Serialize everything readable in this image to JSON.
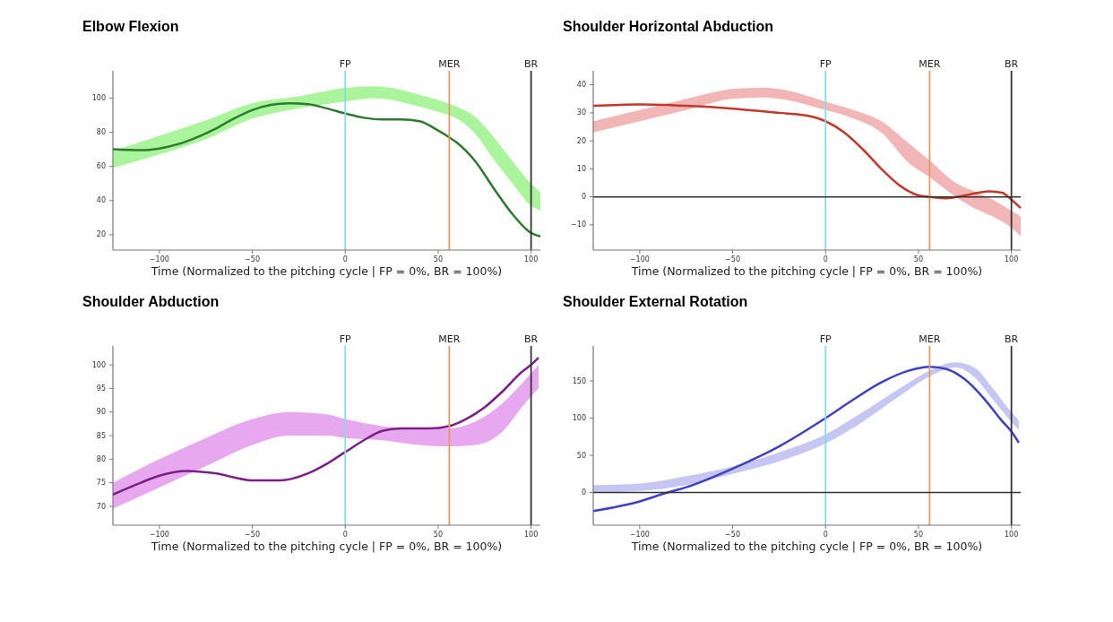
{
  "chart_data": [
    {
      "type": "line",
      "title": "Elbow Flexion",
      "xlabel": "Time (Normalized to the pitching cycle | FP = 0%, BR = 100%)",
      "xlim": [
        -125,
        105
      ],
      "xticks": [
        -100,
        -50,
        0,
        50,
        100
      ],
      "ylim": [
        11,
        116
      ],
      "yticks": [
        20,
        40,
        60,
        80,
        100
      ],
      "grid": false,
      "ref_lines": [
        {
          "axis": "x",
          "value": 0,
          "label": "FP",
          "color": "#7fdfea"
        },
        {
          "axis": "x",
          "value": 56,
          "label": "MER",
          "color": "#e89a5a"
        },
        {
          "axis": "x",
          "value": 100,
          "label": "BR",
          "color": "#333333"
        }
      ],
      "series": [
        {
          "type": "area",
          "color": "#aaf59c",
          "x": [
            -125,
            -100,
            -75,
            -50,
            -25,
            0,
            15,
            25,
            40,
            50,
            60,
            70,
            80,
            90,
            100,
            105
          ],
          "values": [
            null,
            null,
            null,
            null,
            null,
            null,
            null,
            null,
            null,
            null,
            null,
            null,
            null,
            null,
            null,
            null
          ],
          "lower": [
            59,
            67,
            76,
            88,
            94,
            98,
            100,
            99,
            95,
            92,
            88,
            79,
            64,
            50,
            37,
            34
          ],
          "upper": [
            69,
            78,
            87,
            97,
            101,
            106,
            107,
            106,
            102,
            99,
            95,
            89,
            77,
            63,
            50,
            45
          ]
        },
        {
          "type": "line",
          "color": "#2e7a2e",
          "x": [
            -125,
            -110,
            -100,
            -90,
            -80,
            -70,
            -60,
            -50,
            -40,
            -30,
            -20,
            -10,
            0,
            10,
            20,
            30,
            40,
            50,
            56,
            60,
            70,
            80,
            90,
            100,
            105
          ],
          "values": [
            70,
            69.5,
            70.5,
            73,
            77,
            82,
            88,
            93,
            96,
            97,
            96.5,
            94,
            91,
            88.5,
            87.5,
            87.5,
            86.5,
            81,
            77,
            74,
            63,
            47,
            32,
            21,
            19
          ]
        }
      ]
    },
    {
      "type": "line",
      "title": "Shoulder Horizontal Abduction",
      "xlabel": "Time (Normalized to the pitching cycle | FP = 0%, BR = 100%)",
      "xlim": [
        -125,
        105
      ],
      "xticks": [
        -100,
        -50,
        0,
        50,
        100
      ],
      "ylim": [
        -19,
        45
      ],
      "yticks": [
        -10,
        0,
        10,
        20,
        30,
        40
      ],
      "grid": false,
      "ref_lines": [
        {
          "axis": "x",
          "value": 0,
          "label": "FP",
          "color": "#7fdfea"
        },
        {
          "axis": "x",
          "value": 56,
          "label": "MER",
          "color": "#e89a5a"
        },
        {
          "axis": "x",
          "value": 100,
          "label": "BR",
          "color": "#333333"
        },
        {
          "axis": "y",
          "value": 0,
          "color": "#333333"
        }
      ],
      "series": [
        {
          "type": "area",
          "color": "#f2b6b6",
          "x": [
            -125,
            -100,
            -75,
            -50,
            -35,
            -25,
            0,
            15,
            30,
            45,
            56,
            70,
            80,
            90,
            100,
            105
          ],
          "values": [
            null,
            null,
            null,
            null,
            null,
            null,
            null,
            null,
            null,
            null,
            null,
            null,
            null,
            null,
            null,
            null
          ],
          "lower": [
            23,
            27,
            31,
            35,
            35.5,
            35,
            31,
            28,
            23,
            12,
            7,
            0,
            -4,
            -7,
            -11,
            -14
          ],
          "upper": [
            27,
            31,
            35,
            38.5,
            39,
            38.5,
            34,
            31,
            27,
            19,
            13,
            5,
            2,
            -1,
            -5,
            -7
          ]
        },
        {
          "type": "line",
          "color": "#c0392b",
          "x": [
            -125,
            -100,
            -75,
            -50,
            -25,
            -10,
            0,
            10,
            20,
            30,
            40,
            50,
            56,
            65,
            75,
            88,
            95,
            100,
            105
          ],
          "values": [
            32.5,
            33,
            32.5,
            31.5,
            30,
            29,
            27,
            23,
            17,
            10,
            4,
            0.5,
            0,
            -0.5,
            0.5,
            2,
            1.5,
            -1,
            -4
          ]
        }
      ]
    },
    {
      "type": "line",
      "title": "Shoulder Abduction",
      "xlabel": "Time (Normalized to the pitching cycle | FP = 0%, BR = 100%)",
      "xlim": [
        -125,
        105
      ],
      "xticks": [
        -100,
        -50,
        0,
        50,
        100
      ],
      "ylim": [
        66,
        104
      ],
      "yticks": [
        70,
        75,
        80,
        85,
        90,
        95,
        100
      ],
      "grid": false,
      "ref_lines": [
        {
          "axis": "x",
          "value": 0,
          "label": "FP",
          "color": "#7fdfea"
        },
        {
          "axis": "x",
          "value": 56,
          "label": "MER",
          "color": "#e89a5a"
        },
        {
          "axis": "x",
          "value": 100,
          "label": "BR",
          "color": "#333333"
        }
      ],
      "series": [
        {
          "type": "area",
          "color": "#e8a8f0",
          "x": [
            -125,
            -100,
            -75,
            -50,
            -30,
            -10,
            0,
            20,
            40,
            56,
            70,
            85,
            95,
            104
          ],
          "values": [
            null,
            null,
            null,
            null,
            null,
            null,
            null,
            null,
            null,
            null,
            null,
            null,
            null,
            null
          ],
          "lower": [
            69.5,
            74,
            78.5,
            83,
            85,
            85,
            84.5,
            84,
            83,
            82.7,
            83,
            86,
            91,
            95
          ],
          "upper": [
            75,
            80,
            84.5,
            88.5,
            90,
            89.5,
            88.5,
            87,
            86.5,
            86.5,
            88,
            92,
            96,
            100
          ]
        },
        {
          "type": "line",
          "color": "#7a1f86",
          "x": [
            -125,
            -110,
            -100,
            -85,
            -70,
            -50,
            -35,
            -20,
            -10,
            0,
            10,
            20,
            30,
            45,
            56,
            65,
            75,
            85,
            95,
            100,
            104
          ],
          "values": [
            72.5,
            75,
            76.5,
            77.5,
            77,
            75.5,
            75.5,
            77,
            79,
            81.5,
            84,
            86,
            86.5,
            86.5,
            87,
            88.5,
            91,
            94.5,
            98.5,
            100,
            101.5
          ]
        }
      ]
    },
    {
      "type": "line",
      "title": "Shoulder External Rotation",
      "xlabel": "Time (Normalized to the pitching cycle | FP = 0%, BR = 100%)",
      "xlim": [
        -125,
        105
      ],
      "xticks": [
        -100,
        -50,
        0,
        50,
        100
      ],
      "ylim": [
        -44,
        197
      ],
      "yticks": [
        0,
        50,
        100,
        150
      ],
      "grid": false,
      "ref_lines": [
        {
          "axis": "x",
          "value": 0,
          "label": "FP",
          "color": "#7fdfea"
        },
        {
          "axis": "x",
          "value": 56,
          "label": "MER",
          "color": "#e89a5a"
        },
        {
          "axis": "x",
          "value": 100,
          "label": "BR",
          "color": "#333333"
        },
        {
          "axis": "y",
          "value": 0,
          "color": "#333333"
        }
      ],
      "series": [
        {
          "type": "area",
          "color": "#c6c6f2",
          "x": [
            -125,
            -100,
            -75,
            -50,
            -25,
            0,
            20,
            40,
            56,
            70,
            80,
            90,
            100,
            104
          ],
          "values": [
            null,
            null,
            null,
            null,
            null,
            null,
            null,
            null,
            null,
            null,
            null,
            null,
            null,
            null
          ],
          "lower": [
            0,
            2,
            10,
            25,
            42,
            66,
            95,
            130,
            156,
            168,
            155,
            125,
            95,
            84
          ],
          "upper": [
            10,
            12,
            22,
            35,
            54,
            78,
            108,
            140,
            164,
            175,
            168,
            140,
            108,
            97
          ]
        },
        {
          "type": "line",
          "color": "#3f3fc8",
          "x": [
            -125,
            -100,
            -85,
            -75,
            -50,
            -25,
            0,
            15,
            30,
            45,
            56,
            65,
            75,
            85,
            95,
            100,
            104
          ],
          "values": [
            -25,
            -12,
            0,
            7,
            32,
            62,
            100,
            125,
            148,
            164,
            169,
            166,
            152,
            127,
            96,
            82,
            67
          ]
        }
      ]
    }
  ]
}
